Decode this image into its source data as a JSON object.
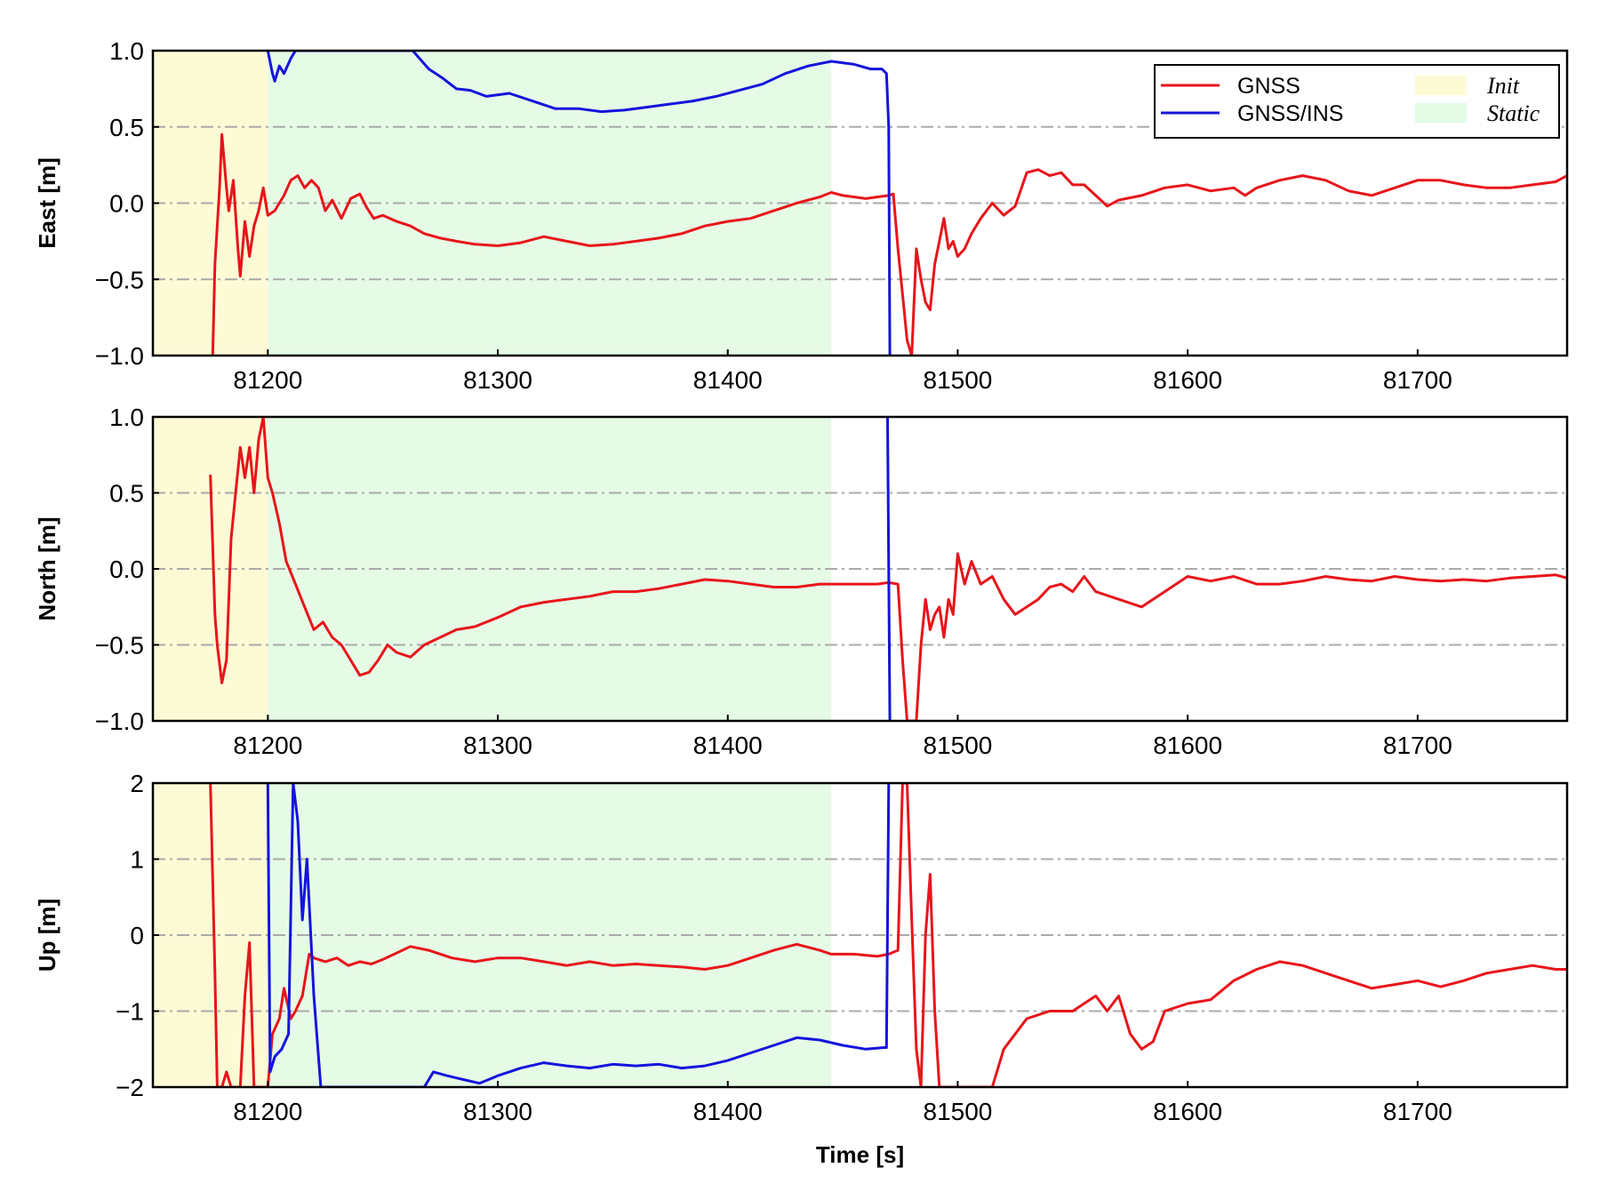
{
  "chart_data": {
    "type": "line",
    "xlabel": "Time [s]",
    "xlim": [
      81150,
      81765
    ],
    "xticks": [
      81200,
      81300,
      81400,
      81500,
      81600,
      81700
    ],
    "grid": "horizontal dash-dot",
    "legend_placement": "top-right of first panel",
    "colors": {
      "GNSS": "#e8141b",
      "GNSS/INS": "#1414dc",
      "Init": "#fdfbd6",
      "Static": "#e6fbe6",
      "grid": "#aaaaaa"
    },
    "shaded_regions": [
      {
        "name": "Init",
        "x_start": 81150,
        "x_end": 81200
      },
      {
        "name": "Static",
        "x_start": 81200,
        "x_end": 81445
      }
    ],
    "legend": {
      "series": [
        "GNSS",
        "GNSS/INS"
      ],
      "regions": [
        "Init",
        "Static"
      ]
    },
    "panels": [
      {
        "ylabel": "East [m]",
        "ylim": [
          -1.0,
          1.0
        ],
        "yticks": [
          -1.0,
          -0.5,
          0.0,
          0.5,
          1.0
        ],
        "ytick_labels": [
          "−1.0",
          "−0.5",
          "0.0",
          "0.5",
          "1.0"
        ],
        "xtick_labels": [
          "81200",
          "81300",
          "81400",
          "81500",
          "81600",
          "81700"
        ],
        "series": [
          {
            "name": "GNSS",
            "x": [
              81176,
              81177,
              81179,
              81180,
              81182,
              81183,
              81185,
              81187,
              81188,
              81190,
              81192,
              81194,
              81196,
              81198,
              81200,
              81203,
              81207,
              81210,
              81213,
              81216,
              81219,
              81222,
              81225,
              81228,
              81232,
              81236,
              81240,
              81243,
              81246,
              81250,
              81256,
              81262,
              81268,
              81275,
              81282,
              81290,
              81300,
              81310,
              81320,
              81330,
              81340,
              81350,
              81360,
              81370,
              81380,
              81390,
              81400,
              81410,
              81420,
              81430,
              81440,
              81445,
              81450,
              81455,
              81460,
              81465,
              81470,
              81472,
              81474,
              81476,
              81478,
              81480,
              81482,
              81484,
              81486,
              81488,
              81490,
              81492,
              81494,
              81496,
              81498,
              81500,
              81503,
              81506,
              81510,
              81515,
              81520,
              81525,
              81530,
              81535,
              81540,
              81545,
              81550,
              81555,
              81560,
              81565,
              81570,
              81580,
              81590,
              81600,
              81610,
              81620,
              81625,
              81630,
              81640,
              81650,
              81660,
              81670,
              81680,
              81690,
              81700,
              81710,
              81720,
              81730,
              81740,
              81750,
              81760,
              81765
            ],
            "y": [
              -1.0,
              -0.4,
              0.1,
              0.45,
              0.1,
              -0.05,
              0.15,
              -0.3,
              -0.48,
              -0.12,
              -0.35,
              -0.15,
              -0.05,
              0.1,
              -0.08,
              -0.05,
              0.05,
              0.15,
              0.18,
              0.1,
              0.15,
              0.1,
              -0.05,
              0.02,
              -0.1,
              0.03,
              0.06,
              -0.03,
              -0.1,
              -0.08,
              -0.12,
              -0.15,
              -0.2,
              -0.23,
              -0.25,
              -0.27,
              -0.28,
              -0.26,
              -0.22,
              -0.25,
              -0.28,
              -0.27,
              -0.25,
              -0.23,
              -0.2,
              -0.15,
              -0.12,
              -0.1,
              -0.05,
              0.0,
              0.04,
              0.07,
              0.05,
              0.04,
              0.03,
              0.04,
              0.05,
              0.06,
              -0.3,
              -0.6,
              -0.9,
              -1.0,
              -0.3,
              -0.5,
              -0.65,
              -0.7,
              -0.4,
              -0.25,
              -0.1,
              -0.3,
              -0.25,
              -0.35,
              -0.3,
              -0.2,
              -0.1,
              0.0,
              -0.08,
              -0.02,
              0.2,
              0.22,
              0.18,
              0.2,
              0.12,
              0.12,
              0.05,
              -0.02,
              0.02,
              0.05,
              0.1,
              0.12,
              0.08,
              0.1,
              0.05,
              0.1,
              0.15,
              0.18,
              0.15,
              0.08,
              0.05,
              0.1,
              0.15,
              0.15,
              0.12,
              0.1,
              0.1,
              0.12,
              0.14,
              0.18
            ]
          },
          {
            "name": "GNSS/INS",
            "x": [
              81200,
              81202,
              81203,
              81205,
              81207,
              81210,
              81212,
              81263,
              81270,
              81276,
              81282,
              81288,
              81295,
              81305,
              81315,
              81325,
              81335,
              81345,
              81355,
              81365,
              81375,
              81385,
              81395,
              81405,
              81415,
              81425,
              81435,
              81445,
              81455,
              81462,
              81467,
              81469,
              81470,
              81470.5
            ],
            "y": [
              1.0,
              0.85,
              0.8,
              0.9,
              0.85,
              0.95,
              1.0,
              1.0,
              0.88,
              0.82,
              0.75,
              0.74,
              0.7,
              0.72,
              0.67,
              0.62,
              0.62,
              0.6,
              0.61,
              0.63,
              0.65,
              0.67,
              0.7,
              0.74,
              0.78,
              0.85,
              0.9,
              0.93,
              0.91,
              0.88,
              0.88,
              0.85,
              0.5,
              -1.0
            ]
          }
        ]
      },
      {
        "ylabel": "North [m]",
        "ylim": [
          -1.0,
          1.0
        ],
        "yticks": [
          -1.0,
          -0.5,
          0.0,
          0.5,
          1.0
        ],
        "ytick_labels": [
          "−1.0",
          "−0.5",
          "0.0",
          "0.5",
          "1.0"
        ],
        "xtick_labels": [
          "81200",
          "81300",
          "81400",
          "81500",
          "81600",
          "81700"
        ],
        "series": [
          {
            "name": "GNSS",
            "x": [
              81175,
              81177,
              81178,
              81180,
              81182,
              81184,
              81186,
              81188,
              81190,
              81192,
              81194,
              81196,
              81198,
              81200,
              81202,
              81205,
              81208,
              81212,
              81216,
              81220,
              81224,
              81228,
              81232,
              81236,
              81240,
              81244,
              81248,
              81252,
              81256,
              81262,
              81268,
              81275,
              81282,
              81290,
              81300,
              81310,
              81320,
              81330,
              81340,
              81350,
              81360,
              81370,
              81380,
              81390,
              81400,
              81410,
              81420,
              81430,
              81440,
              81445,
              81455,
              81465,
              81470,
              81474,
              81476,
              81478,
              81480,
              81482,
              81484,
              81486,
              81488,
              81490,
              81492,
              81494,
              81496,
              81498,
              81500,
              81503,
              81506,
              81510,
              81515,
              81520,
              81525,
              81530,
              81535,
              81540,
              81545,
              81550,
              81555,
              81560,
              81570,
              81580,
              81590,
              81600,
              81610,
              81620,
              81630,
              81640,
              81650,
              81660,
              81670,
              81680,
              81690,
              81700,
              81710,
              81720,
              81730,
              81740,
              81750,
              81760,
              81765
            ],
            "y": [
              0.62,
              -0.3,
              -0.5,
              -0.75,
              -0.6,
              0.2,
              0.5,
              0.8,
              0.6,
              0.8,
              0.5,
              0.85,
              1.0,
              0.6,
              0.5,
              0.3,
              0.05,
              -0.1,
              -0.25,
              -0.4,
              -0.35,
              -0.45,
              -0.5,
              -0.6,
              -0.7,
              -0.68,
              -0.6,
              -0.5,
              -0.55,
              -0.58,
              -0.5,
              -0.45,
              -0.4,
              -0.38,
              -0.32,
              -0.25,
              -0.22,
              -0.2,
              -0.18,
              -0.15,
              -0.15,
              -0.13,
              -0.1,
              -0.07,
              -0.08,
              -0.1,
              -0.12,
              -0.12,
              -0.1,
              -0.1,
              -0.1,
              -0.1,
              -0.09,
              -0.1,
              -0.6,
              -1.0,
              -1.0,
              -1.0,
              -0.5,
              -0.2,
              -0.4,
              -0.3,
              -0.25,
              -0.45,
              -0.2,
              -0.3,
              0.1,
              -0.1,
              0.05,
              -0.1,
              -0.05,
              -0.2,
              -0.3,
              -0.25,
              -0.2,
              -0.12,
              -0.1,
              -0.15,
              -0.05,
              -0.15,
              -0.2,
              -0.25,
              -0.15,
              -0.05,
              -0.08,
              -0.05,
              -0.1,
              -0.1,
              -0.08,
              -0.05,
              -0.07,
              -0.08,
              -0.05,
              -0.07,
              -0.08,
              -0.07,
              -0.08,
              -0.06,
              -0.05,
              -0.04,
              -0.06
            ]
          },
          {
            "name": "GNSS/INS",
            "x": [
              81469.5,
              81470,
              81470.5
            ],
            "y": [
              1.0,
              0.0,
              -1.0
            ]
          }
        ]
      },
      {
        "ylabel": "Up [m]",
        "ylim": [
          -2,
          2
        ],
        "yticks": [
          -2,
          -1,
          0,
          1,
          2
        ],
        "ytick_labels": [
          "−2",
          "−1",
          "0",
          "1",
          "2"
        ],
        "xtick_labels": [
          "81200",
          "81300",
          "81400",
          "81500",
          "81600",
          "81700"
        ],
        "series": [
          {
            "name": "GNSS",
            "x": [
              81175,
              81177,
              81178,
              81180,
              81182,
              81184,
              81186,
              81188,
              81190,
              81192,
              81194,
              81196,
              81198,
              81200,
              81202,
              81205,
              81207,
              81210,
              81212,
              81215,
              81218,
              81220,
              81225,
              81230,
              81235,
              81240,
              81245,
              81250,
              81255,
              81262,
              81270,
              81280,
              81290,
              81300,
              81310,
              81320,
              81330,
              81340,
              81350,
              81360,
              81370,
              81380,
              81390,
              81400,
              81410,
              81420,
              81430,
              81440,
              81445,
              81455,
              81465,
              81470,
              81474,
              81476,
              81478,
              81480,
              81482,
              81484,
              81486,
              81488,
              81490,
              81492,
              81494,
              81496,
              81498,
              81500,
              81502,
              81505,
              81510,
              81515,
              81520,
              81525,
              81530,
              81540,
              81550,
              81560,
              81565,
              81570,
              81575,
              81580,
              81585,
              81590,
              81600,
              81610,
              81620,
              81630,
              81640,
              81650,
              81660,
              81670,
              81680,
              81690,
              81700,
              81710,
              81720,
              81730,
              81740,
              81750,
              81760,
              81765
            ],
            "y": [
              2.0,
              -0.5,
              -2.0,
              -2.0,
              -1.8,
              -2.0,
              -2.0,
              -2.0,
              -0.8,
              -0.1,
              -2.0,
              -2.0,
              -2.0,
              -2.0,
              -1.3,
              -1.1,
              -0.7,
              -1.1,
              -1.0,
              -0.8,
              -0.25,
              -0.3,
              -0.35,
              -0.3,
              -0.4,
              -0.35,
              -0.38,
              -0.32,
              -0.25,
              -0.15,
              -0.2,
              -0.3,
              -0.35,
              -0.3,
              -0.3,
              -0.35,
              -0.4,
              -0.35,
              -0.4,
              -0.38,
              -0.4,
              -0.42,
              -0.45,
              -0.4,
              -0.3,
              -0.2,
              -0.12,
              -0.2,
              -0.25,
              -0.25,
              -0.28,
              -0.25,
              -0.2,
              2.0,
              2.0,
              0.2,
              -1.5,
              -2.0,
              0.0,
              0.8,
              -1.0,
              -2.0,
              -2.0,
              -2.0,
              -2.0,
              -2.0,
              -2.0,
              -2.0,
              -2.0,
              -2.0,
              -1.5,
              -1.3,
              -1.1,
              -1.0,
              -1.0,
              -0.8,
              -1.0,
              -0.8,
              -1.3,
              -1.5,
              -1.4,
              -1.0,
              -0.9,
              -0.85,
              -0.6,
              -0.45,
              -0.35,
              -0.4,
              -0.5,
              -0.6,
              -0.7,
              -0.65,
              -0.6,
              -0.68,
              -0.6,
              -0.5,
              -0.45,
              -0.4,
              -0.45,
              -0.45
            ]
          },
          {
            "name": "GNSS/INS",
            "x": [
              81200,
              81201,
              81203,
              81206,
              81209,
              81211,
              81213,
              81215,
              81217,
              81220,
              81223,
              81268,
              81272,
              81278,
              81285,
              81292,
              81300,
              81310,
              81320,
              81330,
              81340,
              81350,
              81360,
              81370,
              81380,
              81390,
              81400,
              81410,
              81420,
              81430,
              81440,
              81450,
              81460,
              81468,
              81469,
              81470
            ],
            "y": [
              2.0,
              -1.8,
              -1.6,
              -1.5,
              -1.3,
              2.0,
              1.5,
              0.2,
              1.0,
              -0.8,
              -2.0,
              -2.0,
              -1.8,
              -1.85,
              -1.9,
              -1.95,
              -1.85,
              -1.75,
              -1.68,
              -1.72,
              -1.75,
              -1.7,
              -1.72,
              -1.7,
              -1.75,
              -1.72,
              -1.65,
              -1.55,
              -1.45,
              -1.35,
              -1.38,
              -1.45,
              -1.5,
              -1.48,
              -1.48,
              2.0
            ]
          }
        ]
      }
    ]
  }
}
